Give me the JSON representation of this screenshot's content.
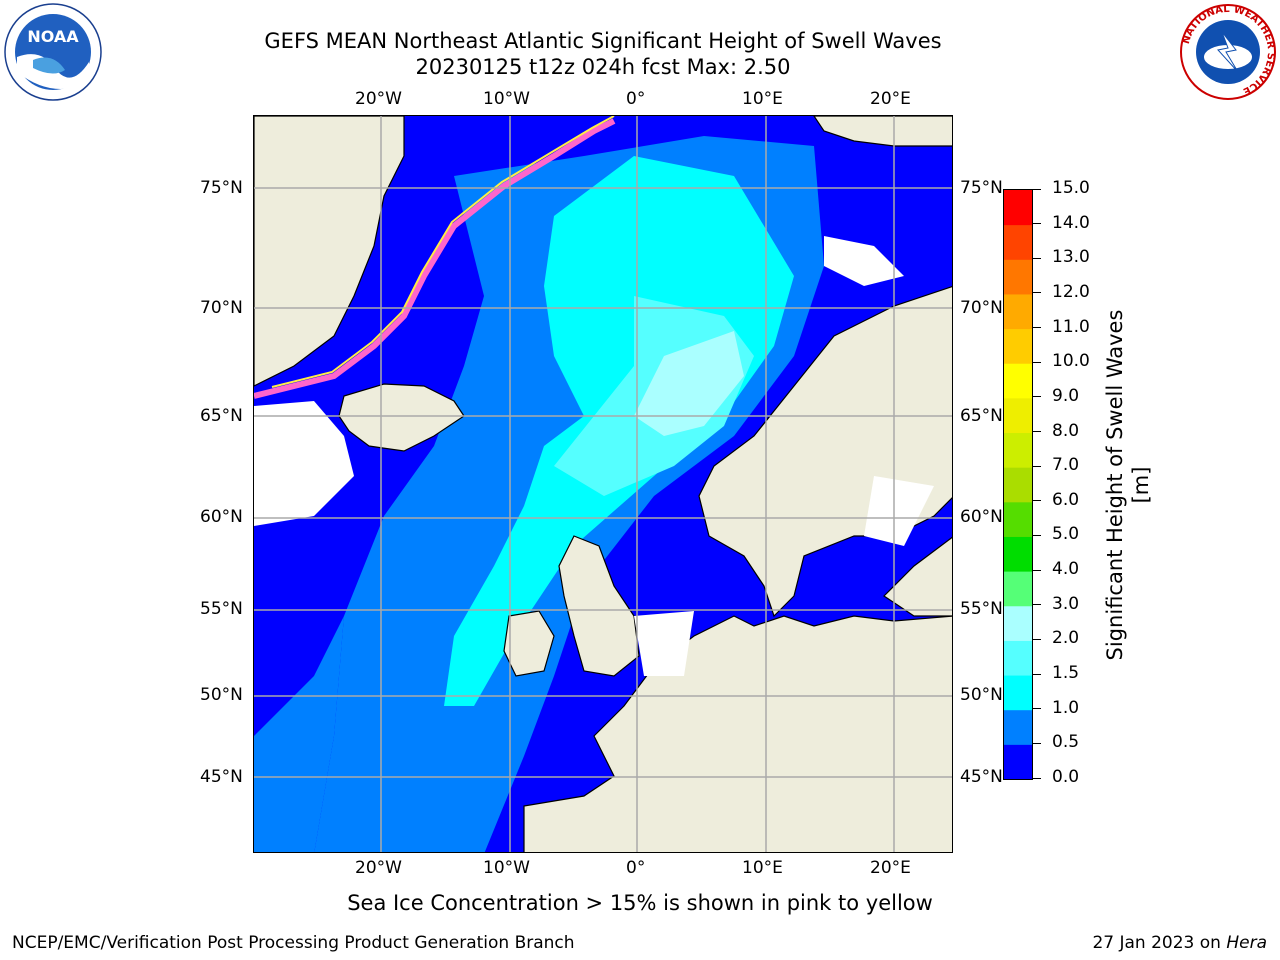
{
  "title": {
    "line1": "GEFS MEAN Northeast Atlantic Significant Height of Swell Waves",
    "line2": "20230125 t12z 024h fcst   Max: 2.50"
  },
  "map": {
    "lon_labels": [
      "20°W",
      "10°W",
      "0°",
      "10°E",
      "20°E"
    ],
    "lat_labels": [
      "75°N",
      "70°N",
      "65°N",
      "60°N",
      "55°N",
      "50°N",
      "45°N"
    ],
    "colors": {
      "land": "#eeeddc",
      "ocean_base": "#0000ff",
      "ice": "#ff66cc",
      "grid": "#aaaaaa"
    }
  },
  "colorbar": {
    "label": "Significant Height of Swell Waves [m]",
    "ticks": [
      "0.0",
      "0.5",
      "1.0",
      "1.5",
      "2.0",
      "3.0",
      "4.0",
      "5.0",
      "6.0",
      "7.0",
      "8.0",
      "9.0",
      "10.0",
      "11.0",
      "12.0",
      "13.0",
      "14.0",
      "15.0"
    ],
    "colors": [
      "#0000ff",
      "#0080ff",
      "#00ffff",
      "#55ffff",
      "#aaffff",
      "#55ff77",
      "#00dd00",
      "#55dd00",
      "#aadd00",
      "#ccee00",
      "#eeee00",
      "#ffff00",
      "#ffcc00",
      "#ffaa00",
      "#ff7700",
      "#ff4400",
      "#ff0000"
    ]
  },
  "note": "Sea Ice Concentration > 15% is shown in pink to yellow",
  "footer": {
    "left": "NCEP/EMC/Verification Post Processing Product Generation Branch",
    "right_prefix": "27 Jan 2023 on ",
    "right_host": "Hera"
  },
  "logos": {
    "left": "NOAA",
    "right": "NATIONAL WEATHER SERVICE"
  }
}
